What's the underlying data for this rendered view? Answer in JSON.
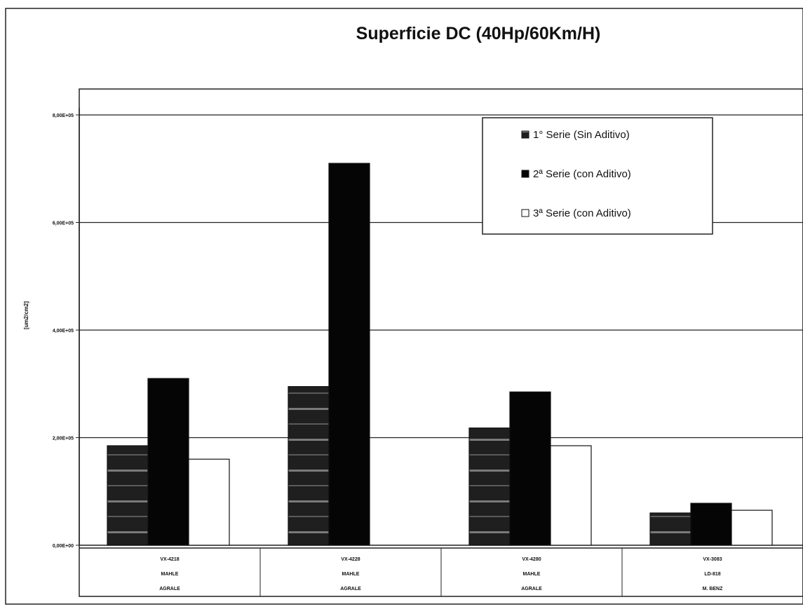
{
  "chart_data": {
    "type": "bar",
    "title": "Superficie DC (40Hp/60Km/H)",
    "xlabel": "",
    "ylabel": "[um2/cm2]",
    "ylim": [
      0,
      800000
    ],
    "yticks": [
      {
        "value": 0,
        "label": "0,00E+00"
      },
      {
        "value": 200000,
        "label": "2,00E+05"
      },
      {
        "value": 400000,
        "label": "4,00E+05"
      },
      {
        "value": 600000,
        "label": "6,00E+05"
      },
      {
        "value": 800000,
        "label": "8,00E+05"
      }
    ],
    "categories": [
      [
        "VX-4218",
        "MAHLE",
        "AGRALE"
      ],
      [
        "VX-4228",
        "MAHLE",
        "AGRALE"
      ],
      [
        "VX-4280",
        "MAHLE",
        "AGRALE"
      ],
      [
        "VX-3083",
        "LD-818",
        "M. BENZ"
      ]
    ],
    "series": [
      {
        "name": "1° Serie (Sin Aditivo)",
        "values": [
          185000,
          295000,
          218000,
          60000
        ],
        "color": "#2a2a2a",
        "pattern": "hatch"
      },
      {
        "name": "2ª Serie (con Aditivo)",
        "values": [
          310000,
          710000,
          285000,
          78000
        ],
        "color": "#050505",
        "pattern": "solid"
      },
      {
        "name": "3ª Serie (con Aditivo)",
        "values": [
          160000,
          0,
          185000,
          65000
        ],
        "color": "#ffffff",
        "pattern": "open"
      }
    ],
    "grid": true,
    "legend_position": "top-right"
  }
}
